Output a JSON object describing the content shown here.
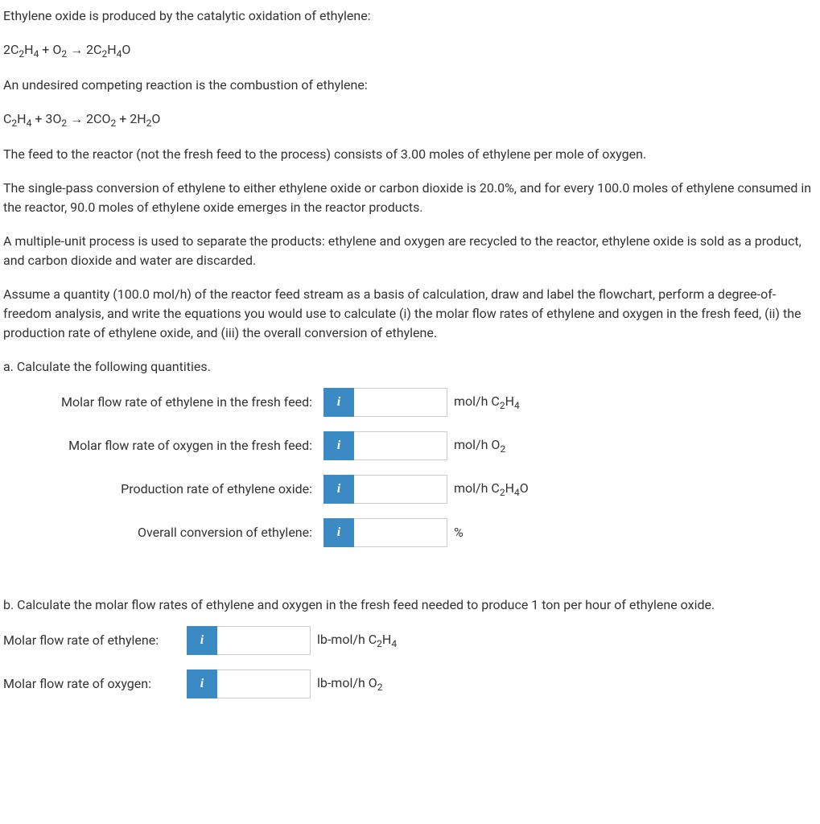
{
  "intro": {
    "p1": "Ethylene oxide is produced by the catalytic oxidation of ethylene:",
    "eq1_html": "2C<sub>2</sub>H<sub>4</sub> + O<sub>2</sub> → 2C<sub>2</sub>H<sub>4</sub>O",
    "p2": "An undesired competing reaction is the combustion of ethylene:",
    "eq2_html": "C<sub>2</sub>H<sub>4</sub> + 3O<sub>2</sub> → 2CO<sub>2</sub> + 2H<sub>2</sub>O",
    "p3": "The feed to the reactor (not the fresh feed to the process) consists of 3.00 moles of ethylene per mole of oxygen.",
    "p4": "The single-pass conversion of ethylene to either ethylene oxide or carbon dioxide is 20.0%, and for every 100.0 moles of ethylene consumed in the reactor, 90.0 moles of ethylene oxide emerges in the reactor products.",
    "p5": "A multiple-unit process is used to separate the products: ethylene and oxygen are recycled to the reactor, ethylene oxide is sold as a product, and carbon dioxide and water are discarded.",
    "p6": "Assume a quantity (100.0 mol/h) of the reactor feed stream as a basis of calculation, draw and label the flowchart, perform a degree-of-freedom analysis, and write the equations you would use to calculate (i) the molar flow rates of ethylene and oxygen in the fresh feed, (ii) the production rate of ethylene oxide, and (iii) the overall conversion of ethylene."
  },
  "sectionA": {
    "label": "a. Calculate the following quantities.",
    "rows": [
      {
        "label": "Molar flow rate of ethylene in the fresh feed:",
        "unit_html": "mol/h C<sub>2</sub>H<sub>4</sub>",
        "value": ""
      },
      {
        "label": "Molar flow rate of oxygen in the fresh feed:",
        "unit_html": "mol/h O<sub>2</sub>",
        "value": ""
      },
      {
        "label": "Production rate of ethylene oxide:",
        "unit_html": "mol/h C<sub>2</sub>H<sub>4</sub>O",
        "value": ""
      },
      {
        "label": "Overall conversion of ethylene:",
        "unit_html": "%",
        "value": ""
      }
    ]
  },
  "sectionB": {
    "label": "b. Calculate the molar flow rates of ethylene and oxygen in the fresh feed needed to produce 1 ton per hour of ethylene oxide.",
    "rows": [
      {
        "label": "Molar flow rate of ethylene:",
        "unit_html": "lb-mol/h C<sub>2</sub>H<sub>4</sub>",
        "value": ""
      },
      {
        "label": "Molar flow rate of oxygen:",
        "unit_html": "lb-mol/h O<sub>2</sub>",
        "value": ""
      }
    ]
  },
  "info_icon_label": "i",
  "colors": {
    "info_bg": "#3b8ac4",
    "info_fg": "#ffffff",
    "text": "#333333",
    "border": "#cccccc"
  }
}
